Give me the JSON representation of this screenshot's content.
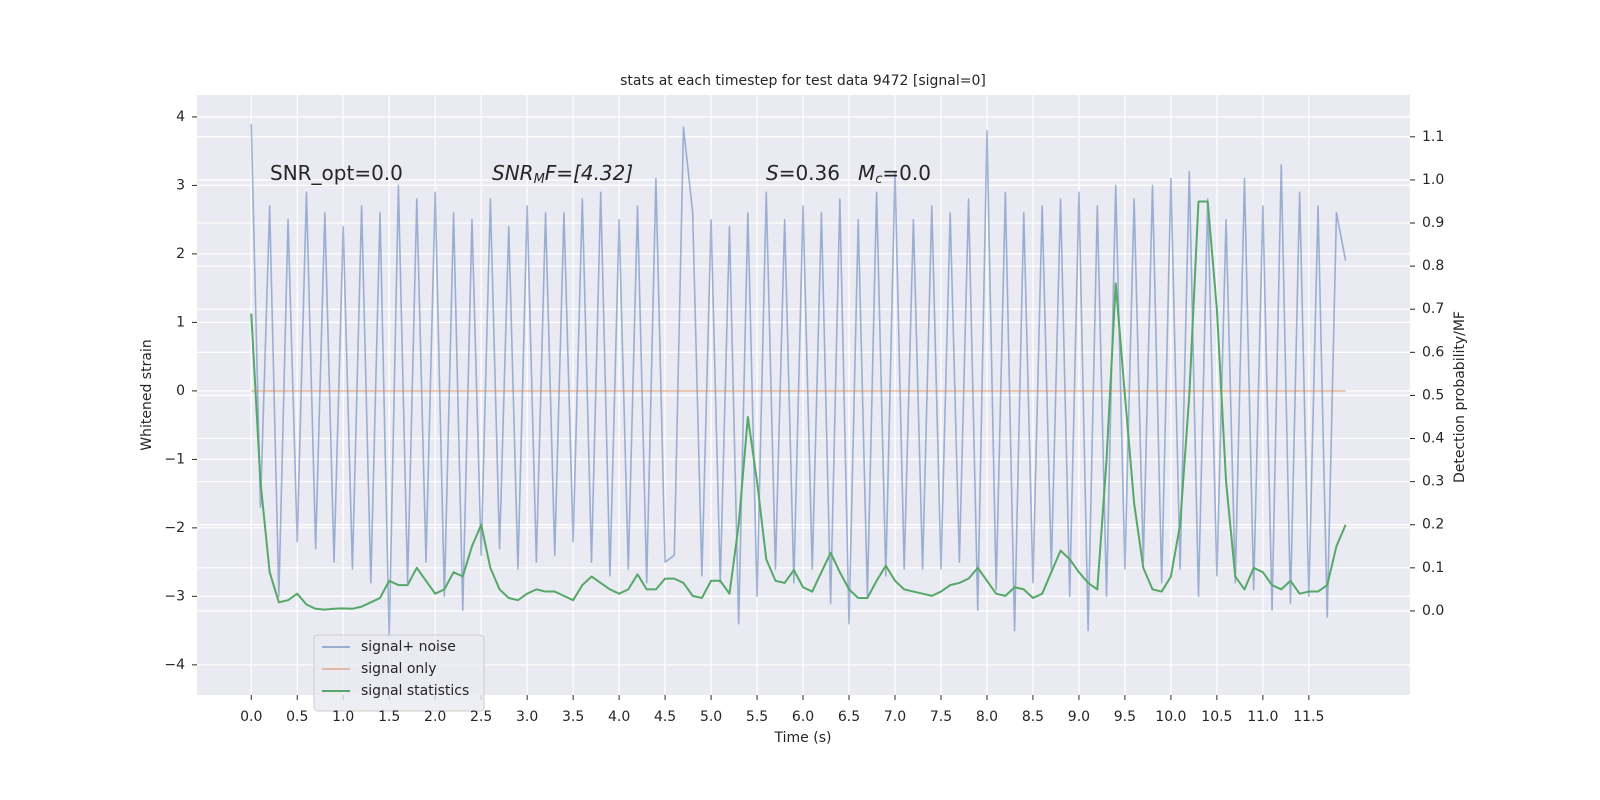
{
  "chart_data": {
    "type": "line",
    "title": "stats at each timestep for test data 9472 [signal=0]",
    "xlabel": "Time (s)",
    "ylabel": "Whitened strain",
    "y2label": "Detection probability/MF",
    "annotations": [
      [
        "SNR_opt=0.0"
      ],
      [
        "SNR",
        "M",
        "F=[4.32]"
      ],
      [
        "S",
        "=0.36"
      ],
      [
        "M",
        "c",
        "=0.0"
      ]
    ],
    "x": [
      0.0,
      0.1,
      0.2,
      0.3,
      0.4,
      0.5,
      0.6,
      0.7,
      0.8,
      0.9,
      1.0,
      1.1,
      1.2,
      1.3,
      1.4,
      1.5,
      1.6,
      1.7,
      1.8,
      1.9,
      2.0,
      2.1,
      2.2,
      2.3,
      2.4,
      2.5,
      2.6,
      2.7,
      2.8,
      2.9,
      3.0,
      3.1,
      3.2,
      3.3,
      3.4,
      3.5,
      3.6,
      3.7,
      3.8,
      3.9,
      4.0,
      4.1,
      4.2,
      4.3,
      4.4,
      4.5,
      4.6,
      4.7,
      4.8,
      4.9,
      5.0,
      5.1,
      5.2,
      5.3,
      5.4,
      5.5,
      5.6,
      5.7,
      5.8,
      5.9,
      6.0,
      6.1,
      6.2,
      6.3,
      6.4,
      6.5,
      6.6,
      6.7,
      6.8,
      6.9,
      7.0,
      7.1,
      7.2,
      7.3,
      7.4,
      7.5,
      7.6,
      7.7,
      7.8,
      7.9,
      8.0,
      8.1,
      8.2,
      8.3,
      8.4,
      8.5,
      8.6,
      8.7,
      8.8,
      8.9,
      9.0,
      9.1,
      9.2,
      9.3,
      9.4,
      9.5,
      9.6,
      9.7,
      9.8,
      9.9,
      10.0,
      10.1,
      10.2,
      10.3,
      10.4,
      10.5,
      10.6,
      10.7,
      10.8,
      10.9,
      11.0,
      11.1,
      11.2,
      11.3,
      11.4,
      11.5,
      11.6,
      11.7,
      11.8,
      11.9
    ],
    "series": [
      {
        "name": "signal+ noise",
        "color": "#4c72b0",
        "opacity": 0.5,
        "values": [
          3.9,
          -1.7,
          2.7,
          -3.0,
          2.5,
          -2.2,
          2.9,
          -2.3,
          2.6,
          -2.5,
          2.4,
          -2.6,
          2.7,
          -2.8,
          2.6,
          -3.6,
          3.0,
          -2.8,
          2.8,
          -2.5,
          2.9,
          -3.0,
          2.6,
          -3.2,
          2.5,
          -2.4,
          2.8,
          -2.3,
          2.4,
          -2.6,
          2.7,
          -2.5,
          2.6,
          -2.4,
          2.6,
          -2.2,
          2.8,
          -2.5,
          2.9,
          -2.7,
          2.5,
          -2.6,
          2.7,
          -2.8,
          3.1,
          -2.5,
          -2.4,
          3.85,
          2.6,
          -2.7,
          2.5,
          -2.8,
          2.4,
          -3.4,
          2.6,
          -3.0,
          2.9,
          -2.6,
          2.5,
          -2.8,
          2.7,
          -2.6,
          2.6,
          -3.1,
          2.8,
          -3.4,
          2.5,
          -3.0,
          2.9,
          -2.7,
          3.2,
          -2.6,
          2.5,
          -2.6,
          2.7,
          -2.6,
          2.6,
          -2.5,
          2.8,
          -3.2,
          3.8,
          -2.9,
          2.9,
          -3.5,
          2.6,
          -2.8,
          2.7,
          -2.6,
          2.8,
          -3.0,
          2.9,
          -3.5,
          2.7,
          -3.0,
          3.0,
          -2.6,
          2.8,
          -2.5,
          3.0,
          -2.8,
          3.1,
          -2.6,
          3.2,
          -3.0,
          2.8,
          -2.7,
          2.5,
          -2.8,
          3.1,
          -2.9,
          2.7,
          -3.2,
          3.3,
          -3.1,
          2.9,
          -3.0,
          2.7,
          -3.3,
          2.6,
          1.9
        ]
      },
      {
        "name": "signal only",
        "color": "#dd8452",
        "opacity": 0.5,
        "values": [
          0,
          0,
          0,
          0,
          0,
          0,
          0,
          0,
          0,
          0,
          0,
          0,
          0,
          0,
          0,
          0,
          0,
          0,
          0,
          0,
          0,
          0,
          0,
          0,
          0,
          0,
          0,
          0,
          0,
          0,
          0,
          0,
          0,
          0,
          0,
          0,
          0,
          0,
          0,
          0,
          0,
          0,
          0,
          0,
          0,
          0,
          0,
          0,
          0,
          0,
          0,
          0,
          0,
          0,
          0,
          0,
          0,
          0,
          0,
          0,
          0,
          0,
          0,
          0,
          0,
          0,
          0,
          0,
          0,
          0,
          0,
          0,
          0,
          0,
          0,
          0,
          0,
          0,
          0,
          0,
          0,
          0,
          0,
          0,
          0,
          0,
          0,
          0,
          0,
          0,
          0,
          0,
          0,
          0,
          0,
          0,
          0,
          0,
          0,
          0,
          0,
          0,
          0,
          0,
          0,
          0,
          0,
          0,
          0,
          0,
          0,
          0,
          0,
          0,
          0,
          0,
          0,
          0,
          0,
          0
        ]
      },
      {
        "name": "signal statistics",
        "color": "#55a868",
        "opacity": 1,
        "axis": "y2",
        "values": [
          0.69,
          0.3,
          0.09,
          0.02,
          0.025,
          0.04,
          0.015,
          0.005,
          0.003,
          0.005,
          0.006,
          0.005,
          0.01,
          0.02,
          0.03,
          0.07,
          0.06,
          0.06,
          0.1,
          0.07,
          0.04,
          0.05,
          0.09,
          0.08,
          0.15,
          0.2,
          0.1,
          0.05,
          0.03,
          0.025,
          0.04,
          0.05,
          0.045,
          0.045,
          0.035,
          0.025,
          0.06,
          0.08,
          0.065,
          0.05,
          0.04,
          0.05,
          0.085,
          0.05,
          0.05,
          0.075,
          0.075,
          0.065,
          0.035,
          0.03,
          0.07,
          0.07,
          0.04,
          0.2,
          0.45,
          0.3,
          0.12,
          0.07,
          0.065,
          0.095,
          0.055,
          0.045,
          0.09,
          0.135,
          0.09,
          0.05,
          0.03,
          0.03,
          0.07,
          0.105,
          0.07,
          0.05,
          0.045,
          0.04,
          0.035,
          0.045,
          0.06,
          0.065,
          0.075,
          0.1,
          0.07,
          0.04,
          0.035,
          0.055,
          0.05,
          0.03,
          0.04,
          0.09,
          0.14,
          0.12,
          0.09,
          0.065,
          0.05,
          0.35,
          0.76,
          0.5,
          0.25,
          0.1,
          0.05,
          0.045,
          0.08,
          0.2,
          0.5,
          0.95,
          0.95,
          0.7,
          0.3,
          0.08,
          0.05,
          0.1,
          0.09,
          0.06,
          0.05,
          0.07,
          0.04,
          0.045,
          0.045,
          0.06,
          0.15,
          0.2
        ]
      }
    ],
    "xlim": [
      -0.59,
      12.6
    ],
    "xticks": [
      {
        "value": 0,
        "label": "0.0"
      },
      0.5,
      {
        "value": 1,
        "label": "1.0"
      },
      1.5,
      {
        "value": 2,
        "label": "2.0"
      },
      2.5,
      {
        "value": 3,
        "label": "3.0"
      },
      3.5,
      {
        "value": 4,
        "label": "4.0"
      },
      4.5,
      {
        "value": 5,
        "label": "5.0"
      },
      5.5,
      {
        "value": 6,
        "label": "6.0"
      },
      6.5,
      {
        "value": 7,
        "label": "7.0"
      },
      7.5,
      {
        "value": 8,
        "label": "8.0"
      },
      8.5,
      {
        "value": 9,
        "label": "9.0"
      },
      9.5,
      {
        "value": 10,
        "label": "10.0"
      },
      10.5,
      {
        "value": 11,
        "label": "11.0"
      },
      11.5
    ],
    "ylim": [
      -4.44,
      4.32
    ],
    "yticks": [
      {
        "value": -4,
        "label": "−4"
      },
      {
        "value": -3,
        "label": "−3"
      },
      {
        "value": -2,
        "label": "−2"
      },
      {
        "value": -1,
        "label": "−1"
      },
      0,
      1,
      2,
      3,
      4
    ],
    "y2lim": [
      -0.195,
      1.197
    ],
    "y2ticks": [
      {
        "value": 0,
        "label": "0.0"
      },
      0.1,
      0.2,
      0.3,
      0.4,
      0.5,
      0.6,
      0.7,
      0.8,
      0.9,
      {
        "value": 1,
        "label": "1.0"
      },
      1.1
    ],
    "grid": true,
    "legend": "lower left"
  }
}
